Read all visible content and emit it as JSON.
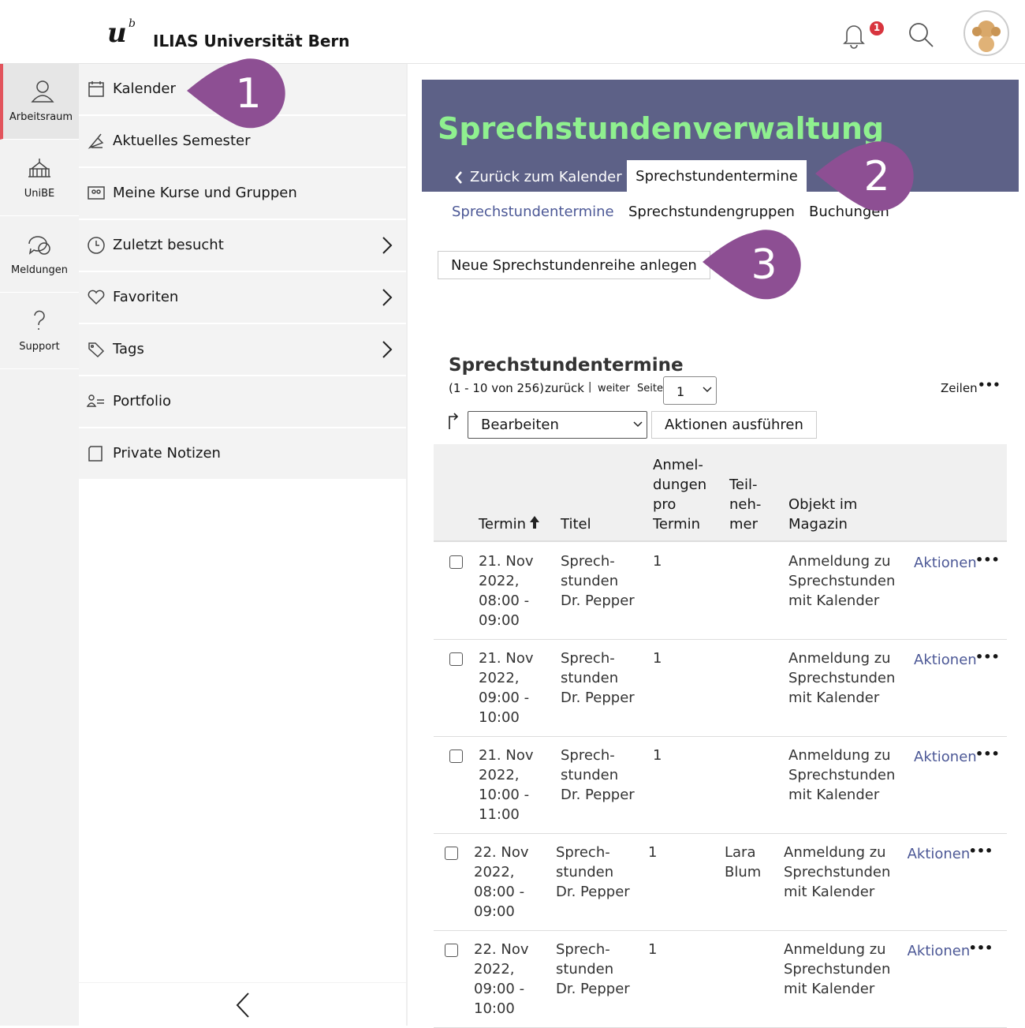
{
  "header": {
    "logo": "u",
    "logo_sup": "b",
    "title": "ILIAS Universität Bern",
    "notification_count": 1
  },
  "mainbar": [
    "Arbeitsraum",
    "UniBE",
    "Meldungen",
    "Support"
  ],
  "slate": [
    {
      "label": "Kalender",
      "icon": "calendar",
      "chevron": false
    },
    {
      "label": "Aktuelles Semester",
      "icon": "semester",
      "chevron": false
    },
    {
      "label": "Meine Kurse und Gruppen",
      "icon": "courses",
      "chevron": false
    },
    {
      "label": "Zuletzt besucht",
      "icon": "clock",
      "chevron": true
    },
    {
      "label": "Favoriten",
      "icon": "heart",
      "chevron": true
    },
    {
      "label": "Tags",
      "icon": "tag",
      "chevron": true
    },
    {
      "label": "Portfolio",
      "icon": "portfolio",
      "chevron": false
    },
    {
      "label": "Private Notizen",
      "icon": "note",
      "chevron": false
    }
  ],
  "callouts": [
    1,
    2,
    3
  ],
  "content": {
    "title": "Sprechstundenverwaltung",
    "back_tab": "Zurück zum Kalender",
    "active_tab": "Sprechstundentermine",
    "subtabs": [
      "Sprechstundentermine",
      "Sprechstundengruppen",
      "Buchungen"
    ],
    "button": "Neue Sprechstundenreihe anlegen"
  },
  "table": {
    "title": "Sprechstundentermine",
    "range": "(1 - 10 von 256)",
    "prev": "zurück",
    "separator": "|",
    "next": "weiter",
    "page_label": "Seite",
    "page": 1,
    "rows_label": "Zeilen",
    "bulk_action": "Bearbeiten",
    "apply": "Aktionen ausführen",
    "columns": [
      "Termin",
      "Titel",
      "Anmel-\ndungen\npro\nTermin",
      "Teil-\nneh-\nmer",
      "Objekt im\nMagazin"
    ],
    "row_action": "Aktionen",
    "rows": [
      [
        "21. Nov\n2022,\n08:00 -\n09:00",
        "Sprech-\nstunden\nDr. Pepper",
        "1",
        "",
        "Anmeldung zu\nSprechstunden\nmit Kalender"
      ],
      [
        "21. Nov\n2022,\n09:00 -\n10:00",
        "Sprech-\nstunden\nDr. Pepper",
        "1",
        "",
        "Anmeldung zu\nSprechstunden\nmit Kalender"
      ],
      [
        "21. Nov\n2022,\n10:00 -\n11:00",
        "Sprech-\nstunden\nDr. Pepper",
        "1",
        "",
        "Anmeldung zu\nSprechstunden\nmit Kalender"
      ],
      [
        "22. Nov\n2022,\n08:00 -\n09:00",
        "Sprech-\nstunden\nDr. Pepper",
        "1",
        "Lara\nBlum",
        "Anmeldung zu\nSprechstunden\nmit Kalender"
      ],
      [
        "22. Nov\n2022,\n09:00 -\n10:00",
        "Sprech-\nstunden\nDr. Pepper",
        "1",
        "",
        "Anmeldung zu\nSprechstunden\nmit Kalender"
      ]
    ]
  }
}
